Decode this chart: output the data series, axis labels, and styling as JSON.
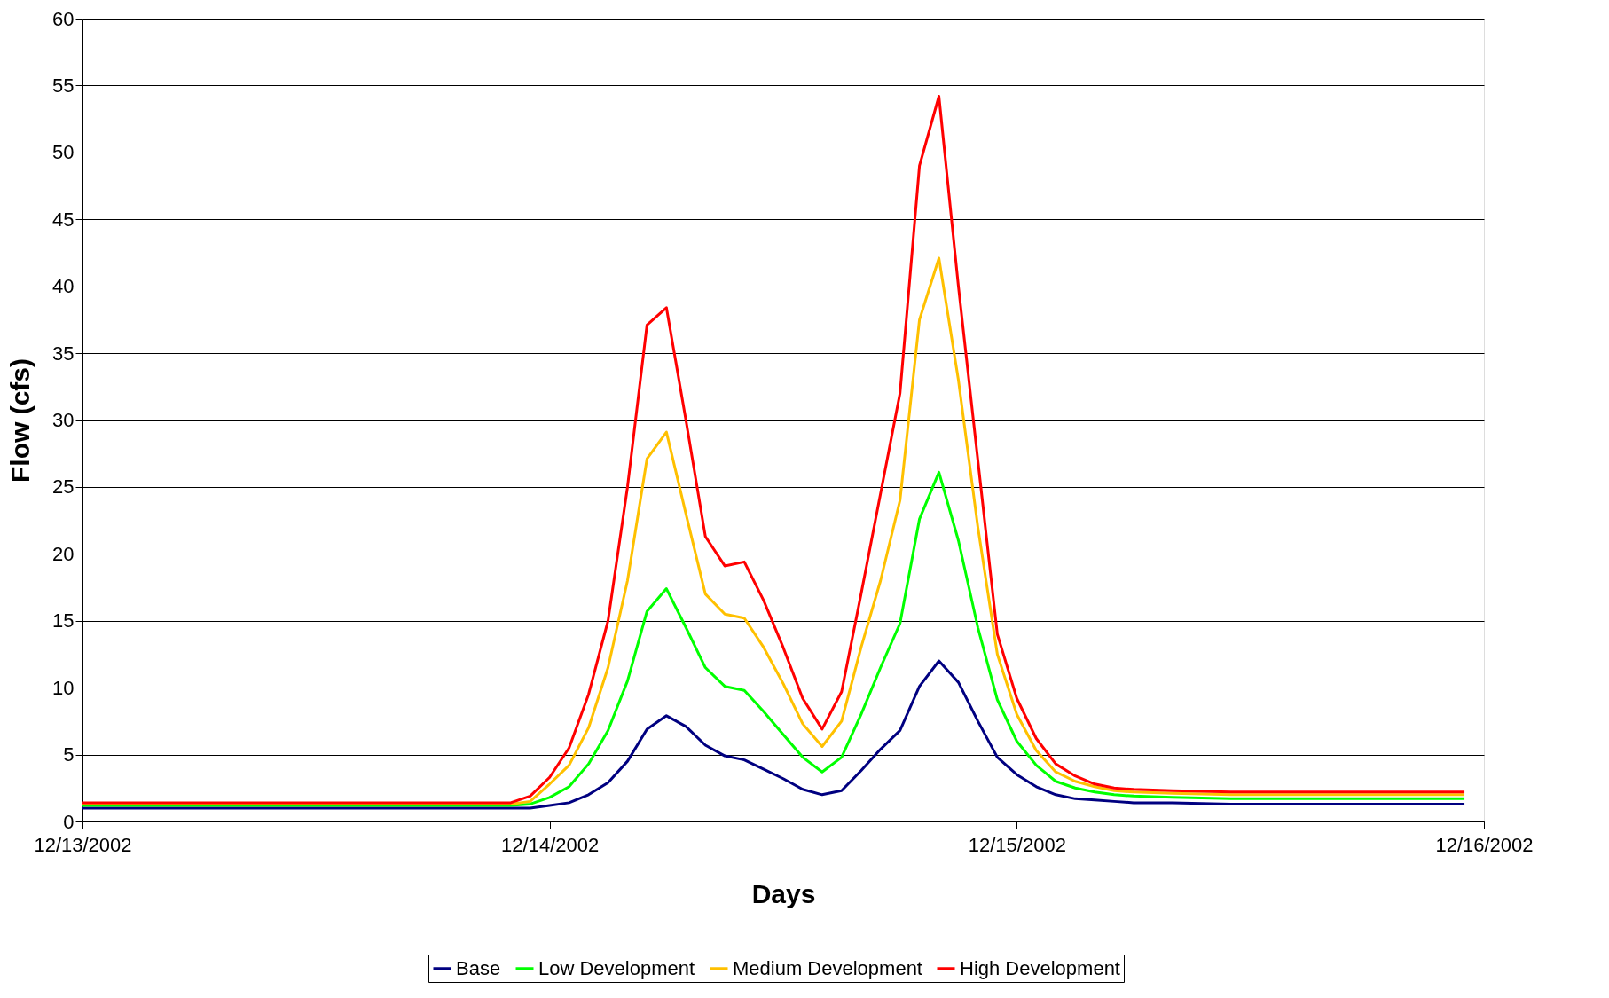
{
  "chart_data": {
    "type": "line",
    "xlabel": "Days",
    "ylabel": "Flow (cfs)",
    "x": [
      "2002-12-13T00:00",
      "2002-12-13T22:00",
      "2002-12-13T23:00",
      "2002-12-14T00:00",
      "2002-12-14T01:00",
      "2002-12-14T02:00",
      "2002-12-14T03:00",
      "2002-12-14T04:00",
      "2002-12-14T05:00",
      "2002-12-14T06:00",
      "2002-12-14T07:00",
      "2002-12-14T08:00",
      "2002-12-14T09:00",
      "2002-12-14T10:00",
      "2002-12-14T11:00",
      "2002-12-14T12:00",
      "2002-12-14T13:00",
      "2002-12-14T14:00",
      "2002-12-14T15:00",
      "2002-12-14T16:00",
      "2002-12-14T17:00",
      "2002-12-14T18:00",
      "2002-12-14T19:00",
      "2002-12-14T20:00",
      "2002-12-14T21:00",
      "2002-12-14T22:00",
      "2002-12-14T23:00",
      "2002-12-15T00:00",
      "2002-12-15T01:00",
      "2002-12-15T02:00",
      "2002-12-15T03:00",
      "2002-12-15T04:00",
      "2002-12-15T05:00",
      "2002-12-15T06:00",
      "2002-12-15T08:00",
      "2002-12-15T11:00",
      "2002-12-15T23:00"
    ],
    "series": [
      {
        "name": "Base",
        "color": "#000080",
        "values": [
          1.0,
          1.0,
          1.0,
          1.2,
          1.4,
          2.0,
          2.9,
          4.5,
          6.9,
          7.9,
          7.1,
          5.7,
          4.9,
          4.6,
          3.9,
          3.2,
          2.4,
          2.0,
          2.3,
          3.8,
          5.4,
          6.8,
          10.1,
          12.0,
          10.4,
          7.5,
          4.8,
          3.5,
          2.6,
          2.0,
          1.7,
          1.6,
          1.5,
          1.4,
          1.4,
          1.3,
          1.3
        ]
      },
      {
        "name": "Low Development",
        "color": "#00ff00",
        "values": [
          1.2,
          1.2,
          1.3,
          1.8,
          2.6,
          4.3,
          6.8,
          10.5,
          15.7,
          17.4,
          14.5,
          11.5,
          10.1,
          9.8,
          8.2,
          6.5,
          4.8,
          3.7,
          4.8,
          8.0,
          11.5,
          14.8,
          22.6,
          26.1,
          21.0,
          14.5,
          9.1,
          6.0,
          4.2,
          3.0,
          2.5,
          2.2,
          2.0,
          1.9,
          1.8,
          1.7,
          1.7
        ]
      },
      {
        "name": "Medium Development",
        "color": "#ffc000",
        "values": [
          1.3,
          1.3,
          1.5,
          2.8,
          4.2,
          7.0,
          11.5,
          18.0,
          27.1,
          29.1,
          23.0,
          17.0,
          15.5,
          15.2,
          13.0,
          10.3,
          7.3,
          5.6,
          7.5,
          13.0,
          18.0,
          24.0,
          37.5,
          42.1,
          33.0,
          22.0,
          12.5,
          8.0,
          5.3,
          3.7,
          3.0,
          2.6,
          2.3,
          2.2,
          2.1,
          2.0,
          2.0
        ]
      },
      {
        "name": "High Development",
        "color": "#ff0000",
        "values": [
          1.4,
          1.4,
          1.9,
          3.3,
          5.5,
          9.5,
          15.0,
          25.0,
          37.1,
          38.4,
          30.0,
          21.3,
          19.1,
          19.4,
          16.5,
          13.0,
          9.2,
          6.9,
          9.7,
          17.0,
          24.5,
          32.0,
          49.0,
          54.2,
          40.0,
          27.0,
          14.0,
          9.2,
          6.2,
          4.3,
          3.4,
          2.8,
          2.5,
          2.4,
          2.3,
          2.2,
          2.2
        ]
      }
    ],
    "xlim": [
      "2002-12-13",
      "2002-12-16"
    ],
    "xticks": [
      {
        "value": "2002-12-13",
        "label": "12/13/2002"
      },
      {
        "value": "2002-12-14",
        "label": "12/14/2002"
      },
      {
        "value": "2002-12-15",
        "label": "12/15/2002"
      },
      {
        "value": "2002-12-16",
        "label": "12/16/2002"
      }
    ],
    "ylim": [
      0,
      60
    ],
    "yticks": [
      0,
      5,
      10,
      15,
      20,
      25,
      30,
      35,
      40,
      45,
      50,
      55,
      60
    ],
    "grid": "y",
    "legend": "bottom",
    "marker": "none",
    "line_style": "solid"
  }
}
